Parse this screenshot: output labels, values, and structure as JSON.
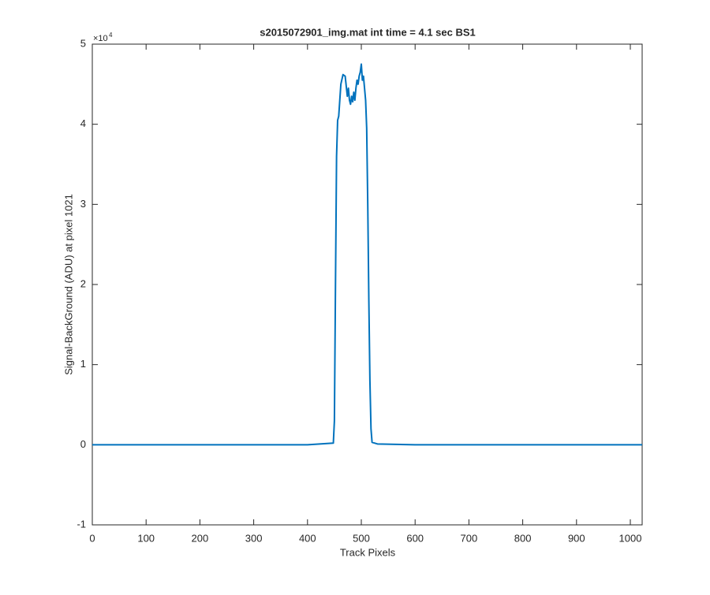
{
  "chart_data": {
    "type": "line",
    "title": "s2015072901_img.mat int time = 4.1 sec   BS1",
    "x_label": "Track Pixels",
    "y_label": "Signal-BackGround (ADU) at pixel 1021",
    "y_multiplier": {
      "base": "×10",
      "exponent": "4"
    },
    "x": [
      0,
      100,
      200,
      300,
      400,
      448,
      450,
      452,
      454,
      456,
      458,
      462,
      466,
      470,
      474,
      476,
      478,
      480,
      482,
      484,
      486,
      488,
      490,
      492,
      494,
      496,
      498,
      500,
      502,
      504,
      506,
      508,
      510,
      512,
      514,
      516,
      518,
      520,
      530,
      600,
      700,
      800,
      900,
      1000,
      1022
    ],
    "series": [
      {
        "color": "#0072bd",
        "values": [
          0,
          0,
          0,
          0,
          0,
          0.02,
          0.3,
          2.0,
          3.6,
          4.05,
          4.1,
          4.5,
          4.62,
          4.6,
          4.35,
          4.45,
          4.3,
          4.25,
          4.35,
          4.28,
          4.4,
          4.3,
          4.45,
          4.55,
          4.5,
          4.6,
          4.65,
          4.75,
          4.55,
          4.6,
          4.45,
          4.3,
          3.95,
          3.0,
          1.8,
          0.8,
          0.2,
          0.03,
          0.01,
          0,
          0,
          0,
          0,
          0,
          0
        ]
      }
    ],
    "xlim": [
      0,
      1022
    ],
    "xticks": [
      0,
      100,
      200,
      300,
      400,
      500,
      600,
      700,
      800,
      900,
      1000
    ],
    "ylim": [
      -1,
      5
    ],
    "yticks": [
      -1,
      0,
      1,
      2,
      3,
      4,
      5
    ],
    "grid": false
  }
}
